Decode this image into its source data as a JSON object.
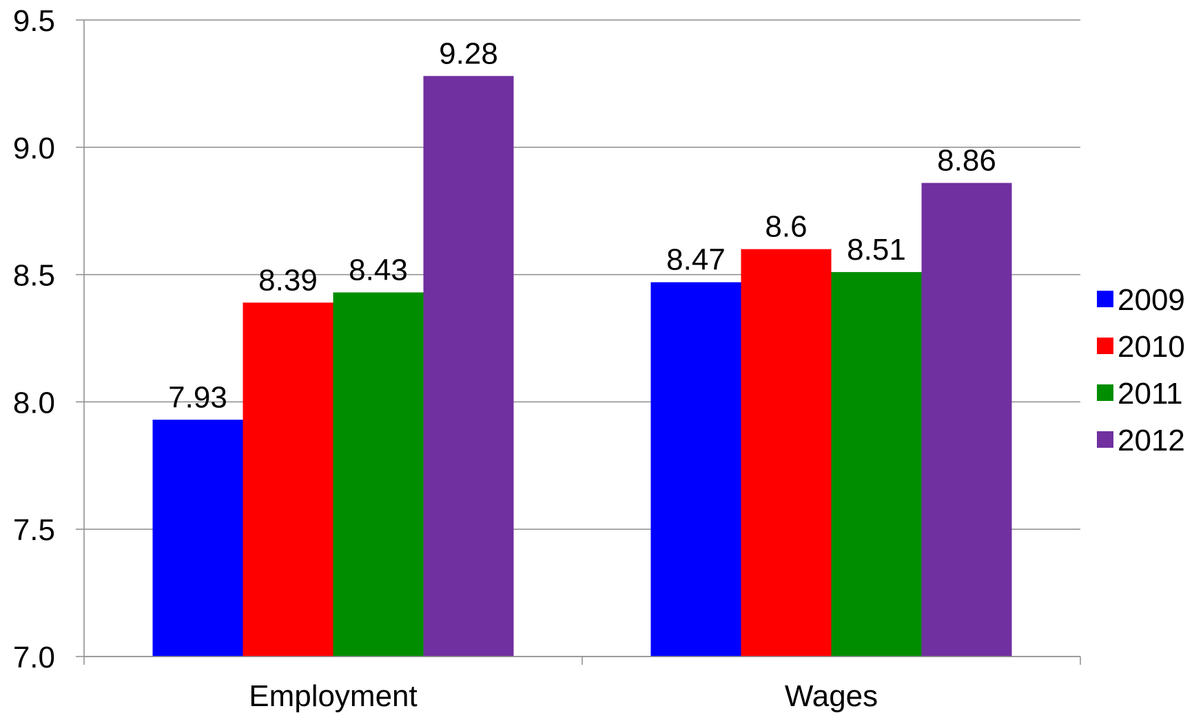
{
  "chart_data": {
    "type": "bar",
    "title": "",
    "xlabel": "",
    "ylabel": "",
    "categories": [
      "Employment",
      "Wages"
    ],
    "series": [
      {
        "name": "2009",
        "color": "#0000FF",
        "values": [
          7.93,
          8.47
        ]
      },
      {
        "name": "2010",
        "color": "#FF0000",
        "values": [
          8.39,
          8.6
        ]
      },
      {
        "name": "2011",
        "color": "#008E00",
        "values": [
          8.43,
          8.51
        ]
      },
      {
        "name": "2012",
        "color": "#7030A0",
        "values": [
          9.28,
          8.86
        ]
      }
    ],
    "data_labels": [
      [
        "7.93",
        "8.47"
      ],
      [
        "8.39",
        "8.6"
      ],
      [
        "8.43",
        "8.51"
      ],
      [
        "9.28",
        "8.86"
      ]
    ],
    "ylim": [
      7.0,
      9.5
    ],
    "yticks": [
      7.0,
      7.5,
      8.0,
      8.5,
      9.0,
      9.5
    ],
    "ytick_labels": [
      "7.0",
      "7.5",
      "8.0",
      "8.5",
      "9.0",
      "9.5"
    ],
    "grid": true,
    "legend_position": "right"
  }
}
